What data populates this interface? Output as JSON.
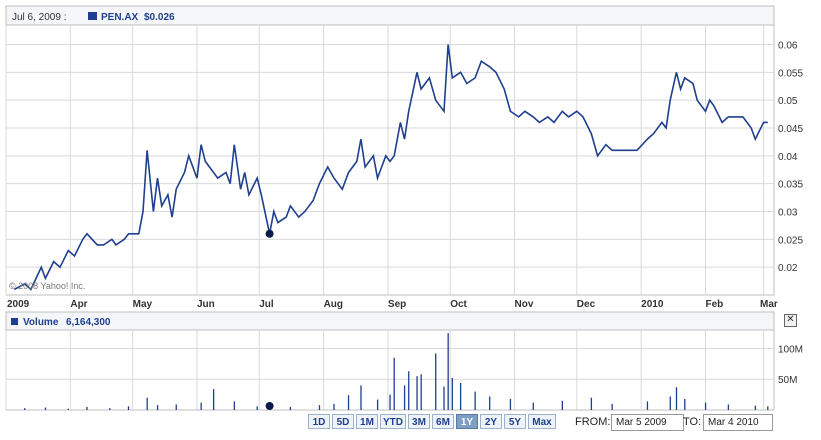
{
  "header": {
    "date_label": "Jul 6, 2009 :",
    "ticker_label": "PEN.AX",
    "price_label": "$0.026"
  },
  "volume_header": {
    "label": "Volume",
    "value": "6,164,300"
  },
  "copyright": "© 2008 Yahoo! Inc.",
  "range_buttons": [
    "1D",
    "5D",
    "1M",
    "YTD",
    "3M",
    "6M",
    "1Y",
    "2Y",
    "5Y",
    "Max"
  ],
  "active_range": "1Y",
  "date_range": {
    "from_label": "FROM:",
    "from_value": "Mar 5 2009",
    "to_label": "TO:",
    "to_value": "Mar 4 2010"
  },
  "colors": {
    "line": "#1f3f8f",
    "grid": "#d9d9d9",
    "marker": "#0a1a4a"
  },
  "chart_data": [
    {
      "type": "line",
      "series": [
        {
          "name": "PEN.AX",
          "values": []
        }
      ],
      "x_tick_labels": [
        "2009",
        "Apr",
        "May",
        "Jun",
        "Jul",
        "Aug",
        "Sep",
        "Oct",
        "Nov",
        "Dec",
        "2010",
        "Feb",
        "Mar"
      ],
      "y_tick_labels": [
        "0.02",
        "0.025",
        "0.03",
        "0.035",
        "0.04",
        "0.045",
        "0.05",
        "0.055",
        "0.06"
      ],
      "ylim": [
        0.015,
        0.0635
      ],
      "grid": true,
      "highlight": {
        "date": "Jul 6, 2009",
        "value": 0.026
      },
      "price_points": [
        [
          "2009-03-05",
          0.016
        ],
        [
          "2009-03-10",
          0.017
        ],
        [
          "2009-03-13",
          0.016
        ],
        [
          "2009-03-18",
          0.02
        ],
        [
          "2009-03-20",
          0.018
        ],
        [
          "2009-03-24",
          0.021
        ],
        [
          "2009-03-27",
          0.02
        ],
        [
          "2009-03-31",
          0.023
        ],
        [
          "2009-04-03",
          0.022
        ],
        [
          "2009-04-07",
          0.025
        ],
        [
          "2009-04-09",
          0.026
        ],
        [
          "2009-04-14",
          0.024
        ],
        [
          "2009-04-17",
          0.024
        ],
        [
          "2009-04-21",
          0.025
        ],
        [
          "2009-04-23",
          0.024
        ],
        [
          "2009-04-27",
          0.025
        ],
        [
          "2009-04-29",
          0.026
        ],
        [
          "2009-05-04",
          0.026
        ],
        [
          "2009-05-06",
          0.03
        ],
        [
          "2009-05-08",
          0.041
        ],
        [
          "2009-05-11",
          0.03
        ],
        [
          "2009-05-13",
          0.036
        ],
        [
          "2009-05-15",
          0.031
        ],
        [
          "2009-05-18",
          0.033
        ],
        [
          "2009-05-20",
          0.029
        ],
        [
          "2009-05-22",
          0.034
        ],
        [
          "2009-05-26",
          0.037
        ],
        [
          "2009-05-28",
          0.04
        ],
        [
          "2009-06-01",
          0.036
        ],
        [
          "2009-06-03",
          0.042
        ],
        [
          "2009-06-05",
          0.039
        ],
        [
          "2009-06-09",
          0.037
        ],
        [
          "2009-06-11",
          0.036
        ],
        [
          "2009-06-15",
          0.037
        ],
        [
          "2009-06-17",
          0.035
        ],
        [
          "2009-06-19",
          0.042
        ],
        [
          "2009-06-22",
          0.034
        ],
        [
          "2009-06-24",
          0.037
        ],
        [
          "2009-06-26",
          0.033
        ],
        [
          "2009-06-30",
          0.036
        ],
        [
          "2009-07-02",
          0.033
        ],
        [
          "2009-07-06",
          0.026
        ],
        [
          "2009-07-08",
          0.03
        ],
        [
          "2009-07-10",
          0.028
        ],
        [
          "2009-07-14",
          0.029
        ],
        [
          "2009-07-16",
          0.031
        ],
        [
          "2009-07-20",
          0.029
        ],
        [
          "2009-07-23",
          0.03
        ],
        [
          "2009-07-27",
          0.032
        ],
        [
          "2009-07-30",
          0.035
        ],
        [
          "2009-08-03",
          0.038
        ],
        [
          "2009-08-06",
          0.036
        ],
        [
          "2009-08-10",
          0.034
        ],
        [
          "2009-08-13",
          0.037
        ],
        [
          "2009-08-17",
          0.039
        ],
        [
          "2009-08-19",
          0.043
        ],
        [
          "2009-08-21",
          0.038
        ],
        [
          "2009-08-25",
          0.04
        ],
        [
          "2009-08-27",
          0.036
        ],
        [
          "2009-08-31",
          0.04
        ],
        [
          "2009-09-02",
          0.039
        ],
        [
          "2009-09-04",
          0.04
        ],
        [
          "2009-09-07",
          0.046
        ],
        [
          "2009-09-09",
          0.043
        ],
        [
          "2009-09-11",
          0.048
        ],
        [
          "2009-09-15",
          0.055
        ],
        [
          "2009-09-17",
          0.052
        ],
        [
          "2009-09-21",
          0.054
        ],
        [
          "2009-09-24",
          0.05
        ],
        [
          "2009-09-28",
          0.048
        ],
        [
          "2009-09-30",
          0.06
        ],
        [
          "2009-10-02",
          0.054
        ],
        [
          "2009-10-06",
          0.055
        ],
        [
          "2009-10-09",
          0.053
        ],
        [
          "2009-10-13",
          0.054
        ],
        [
          "2009-10-16",
          0.057
        ],
        [
          "2009-10-20",
          0.056
        ],
        [
          "2009-10-23",
          0.055
        ],
        [
          "2009-10-27",
          0.052
        ],
        [
          "2009-10-30",
          0.048
        ],
        [
          "2009-11-03",
          0.047
        ],
        [
          "2009-11-06",
          0.048
        ],
        [
          "2009-11-10",
          0.047
        ],
        [
          "2009-11-13",
          0.046
        ],
        [
          "2009-11-17",
          0.047
        ],
        [
          "2009-11-20",
          0.046
        ],
        [
          "2009-11-24",
          0.048
        ],
        [
          "2009-11-27",
          0.047
        ],
        [
          "2009-12-01",
          0.048
        ],
        [
          "2009-12-04",
          0.047
        ],
        [
          "2009-12-08",
          0.044
        ],
        [
          "2009-12-11",
          0.04
        ],
        [
          "2009-12-15",
          0.042
        ],
        [
          "2009-12-18",
          0.041
        ],
        [
          "2009-12-23",
          0.041
        ],
        [
          "2009-12-30",
          0.041
        ],
        [
          "2010-01-04",
          0.043
        ],
        [
          "2010-01-07",
          0.044
        ],
        [
          "2010-01-11",
          0.046
        ],
        [
          "2010-01-13",
          0.045
        ],
        [
          "2010-01-15",
          0.05
        ],
        [
          "2010-01-18",
          0.055
        ],
        [
          "2010-01-20",
          0.052
        ],
        [
          "2010-01-22",
          0.054
        ],
        [
          "2010-01-26",
          0.053
        ],
        [
          "2010-01-28",
          0.05
        ],
        [
          "2010-02-01",
          0.048
        ],
        [
          "2010-02-03",
          0.05
        ],
        [
          "2010-02-05",
          0.049
        ],
        [
          "2010-02-09",
          0.046
        ],
        [
          "2010-02-12",
          0.047
        ],
        [
          "2010-02-16",
          0.047
        ],
        [
          "2010-02-19",
          0.047
        ],
        [
          "2010-02-23",
          0.045
        ],
        [
          "2010-02-25",
          0.043
        ],
        [
          "2010-03-01",
          0.046
        ],
        [
          "2010-03-03",
          0.046
        ]
      ]
    },
    {
      "type": "bar",
      "series": [
        {
          "name": "Volume",
          "values": []
        }
      ],
      "y_tick_labels": [
        "50M",
        "100M"
      ],
      "ylim": [
        0,
        130000000
      ],
      "grid": true,
      "volume_points": [
        [
          "2009-03-10",
          3000000
        ],
        [
          "2009-03-20",
          4000000
        ],
        [
          "2009-03-31",
          2000000
        ],
        [
          "2009-04-09",
          5000000
        ],
        [
          "2009-04-20",
          3000000
        ],
        [
          "2009-04-29",
          6000000
        ],
        [
          "2009-05-08",
          20000000
        ],
        [
          "2009-05-13",
          8000000
        ],
        [
          "2009-05-22",
          9000000
        ],
        [
          "2009-06-03",
          12000000
        ],
        [
          "2009-06-09",
          34000000
        ],
        [
          "2009-06-19",
          14000000
        ],
        [
          "2009-06-30",
          6000000
        ],
        [
          "2009-07-06",
          6164300
        ],
        [
          "2009-07-16",
          5000000
        ],
        [
          "2009-07-30",
          8000000
        ],
        [
          "2009-08-06",
          10000000
        ],
        [
          "2009-08-13",
          24000000
        ],
        [
          "2009-08-19",
          40000000
        ],
        [
          "2009-08-27",
          17000000
        ],
        [
          "2009-09-02",
          25000000
        ],
        [
          "2009-09-04",
          85000000
        ],
        [
          "2009-09-09",
          40000000
        ],
        [
          "2009-09-11",
          63000000
        ],
        [
          "2009-09-15",
          55000000
        ],
        [
          "2009-09-17",
          58000000
        ],
        [
          "2009-09-24",
          92000000
        ],
        [
          "2009-09-28",
          38000000
        ],
        [
          "2009-09-30",
          125000000
        ],
        [
          "2009-10-02",
          52000000
        ],
        [
          "2009-10-06",
          44000000
        ],
        [
          "2009-10-13",
          30000000
        ],
        [
          "2009-10-20",
          22000000
        ],
        [
          "2009-10-30",
          18000000
        ],
        [
          "2009-11-10",
          12000000
        ],
        [
          "2009-11-24",
          15000000
        ],
        [
          "2009-12-08",
          20000000
        ],
        [
          "2009-12-18",
          10000000
        ],
        [
          "2010-01-04",
          14000000
        ],
        [
          "2010-01-15",
          22000000
        ],
        [
          "2010-01-18",
          37000000
        ],
        [
          "2010-01-22",
          18000000
        ],
        [
          "2010-02-01",
          12000000
        ],
        [
          "2010-02-12",
          9000000
        ],
        [
          "2010-02-25",
          7000000
        ],
        [
          "2010-03-03",
          6000000
        ]
      ]
    }
  ]
}
